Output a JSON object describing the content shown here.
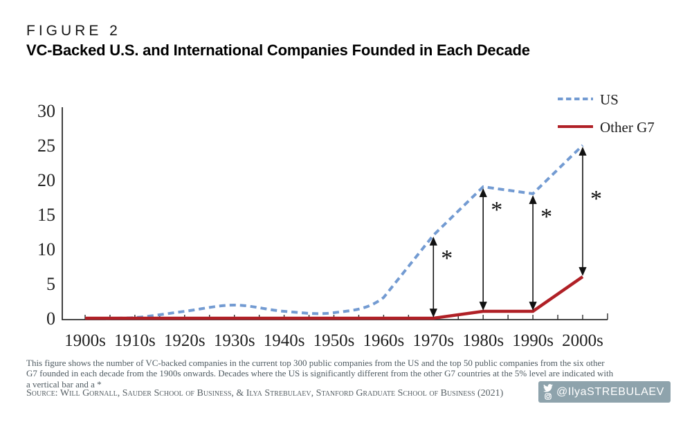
{
  "figure_label": "FIGURE 2",
  "title": "VC-Backed U.S. and International Companies Founded in Each Decade",
  "chart_data": {
    "type": "line",
    "categories": [
      "1900s",
      "1910s",
      "1920s",
      "1930s",
      "1940s",
      "1950s",
      "1960s",
      "1970s",
      "1980s",
      "1990s",
      "2000s"
    ],
    "series": [
      {
        "name": "US",
        "color": "#739BD2",
        "style": "dashed",
        "values": [
          0,
          0.1,
          1,
          1.9,
          1,
          0.8,
          3,
          12,
          19,
          18,
          25
        ]
      },
      {
        "name": "Other G7",
        "color": "#B02026",
        "style": "solid",
        "values": [
          0,
          0,
          0,
          0,
          0,
          0,
          0,
          0,
          1,
          1,
          6
        ]
      }
    ],
    "ylim": [
      0,
      30
    ],
    "yticks": [
      0,
      5,
      10,
      15,
      20,
      25,
      30
    ],
    "xlabel": "",
    "ylabel": "",
    "grid": false,
    "legend_position": "top-right",
    "significance_marker": "*",
    "significance_arrows": [
      {
        "category": "1970s",
        "from": 0,
        "to": 12,
        "star_at": 9.2
      },
      {
        "category": "1980s",
        "from": 1,
        "to": 19,
        "star_at": 16.2
      },
      {
        "category": "1990s",
        "from": 1,
        "to": 18,
        "star_at": 15.2
      },
      {
        "category": "2000s",
        "from": 6,
        "to": 25,
        "star_at": 17.8
      }
    ]
  },
  "footnote_lines": [
    "This figure shows the number of VC-backed companies in the current top 300 public companies from the US and the top 50 public companies from the six other",
    "G7 founded in each decade from the 1900s onwards. Decades where the US is significantly different from the other G7 countries at the 5% level are indicated with",
    "a vertical bar and a *"
  ],
  "source": "Source: Will Gornall, Sauder School of Business, & Ilya Strebulaev, Stanford Graduate School of Business (2021)",
  "badge": {
    "handle": "@IlyaSTREBULAEV",
    "background_color": "#8ea3ac",
    "icons": [
      "twitter-icon",
      "instagram-icon"
    ]
  }
}
